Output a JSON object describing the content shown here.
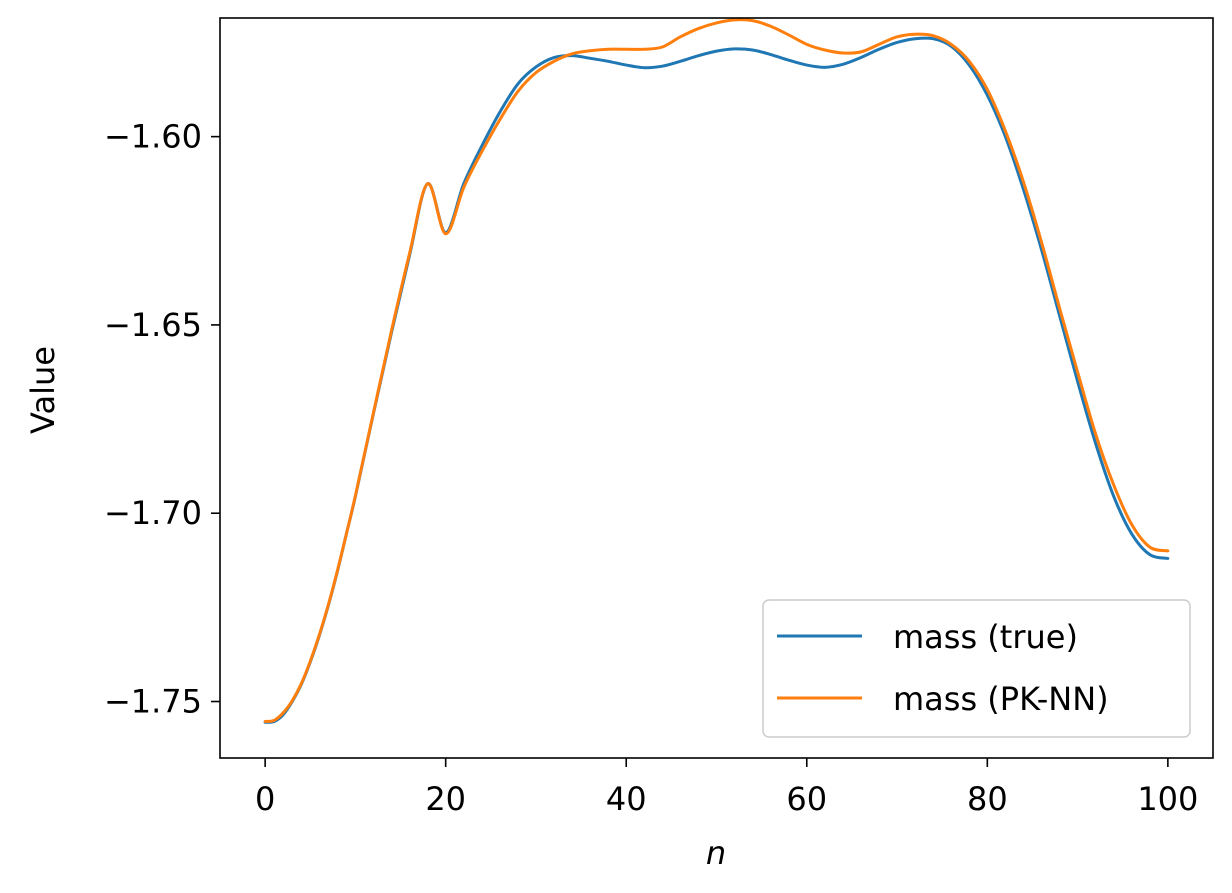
{
  "chart_data": {
    "type": "line",
    "title": "",
    "xlabel": "n",
    "ylabel": "Value",
    "xlim": [
      -5,
      105
    ],
    "ylim": [
      -1.765,
      -1.5685
    ],
    "xticks": [
      0,
      20,
      40,
      60,
      80,
      100
    ],
    "xtick_labels": [
      "0",
      "20",
      "40",
      "60",
      "80",
      "100"
    ],
    "yticks": [
      -1.75,
      -1.7,
      -1.65,
      -1.6
    ],
    "ytick_labels": [
      "−1.75",
      "−1.70",
      "−1.65",
      "−1.60"
    ],
    "grid": false,
    "legend_position": "lower-right",
    "series": [
      {
        "name": "mass (true)",
        "color": "#1f77b4",
        "x": [
          0,
          1,
          2,
          3,
          4,
          5,
          6,
          7,
          8,
          9,
          10,
          12,
          14,
          16,
          18,
          20,
          22,
          24,
          26,
          28,
          30,
          32,
          34,
          36,
          38,
          40,
          42,
          44,
          46,
          48,
          50,
          52,
          54,
          56,
          58,
          60,
          62,
          64,
          66,
          68,
          70,
          72,
          74,
          76,
          78,
          80,
          82,
          84,
          86,
          88,
          90,
          92,
          94,
          96,
          98,
          100
        ],
        "y": [
          -1.7555,
          -1.7553,
          -1.7535,
          -1.75,
          -1.7455,
          -1.7395,
          -1.7325,
          -1.7245,
          -1.7155,
          -1.7055,
          -1.6955,
          -1.6735,
          -1.652,
          -1.6315,
          -1.6125,
          -1.6255,
          -1.6125,
          -1.6025,
          -1.5935,
          -1.586,
          -1.5815,
          -1.579,
          -1.5785,
          -1.5792,
          -1.58,
          -1.581,
          -1.5817,
          -1.5813,
          -1.58,
          -1.5785,
          -1.5773,
          -1.5767,
          -1.577,
          -1.5782,
          -1.5797,
          -1.581,
          -1.5816,
          -1.5808,
          -1.579,
          -1.5768,
          -1.575,
          -1.574,
          -1.574,
          -1.576,
          -1.581,
          -1.589,
          -1.6,
          -1.614,
          -1.63,
          -1.6475,
          -1.665,
          -1.6815,
          -1.6955,
          -1.7055,
          -1.711,
          -1.712
        ]
      },
      {
        "name": "mass (PK-NN)",
        "color": "#ff7f0e",
        "x": [
          0,
          1,
          2,
          3,
          4,
          5,
          6,
          7,
          8,
          9,
          10,
          12,
          14,
          16,
          18,
          20,
          22,
          24,
          26,
          28,
          30,
          32,
          34,
          36,
          38,
          40,
          42,
          44,
          46,
          48,
          50,
          52,
          54,
          56,
          58,
          60,
          62,
          64,
          66,
          68,
          70,
          72,
          74,
          76,
          78,
          80,
          82,
          84,
          86,
          88,
          90,
          92,
          94,
          96,
          98,
          100
        ],
        "y": [
          -1.7553,
          -1.755,
          -1.753,
          -1.7498,
          -1.7453,
          -1.7393,
          -1.7323,
          -1.7243,
          -1.7153,
          -1.7055,
          -1.6953,
          -1.6733,
          -1.6515,
          -1.631,
          -1.6125,
          -1.6258,
          -1.6135,
          -1.604,
          -1.5955,
          -1.588,
          -1.583,
          -1.58,
          -1.578,
          -1.5772,
          -1.5768,
          -1.5768,
          -1.5768,
          -1.5762,
          -1.5735,
          -1.5713,
          -1.5698,
          -1.569,
          -1.5692,
          -1.5707,
          -1.573,
          -1.5755,
          -1.577,
          -1.5778,
          -1.5775,
          -1.5755,
          -1.5735,
          -1.5728,
          -1.5732,
          -1.5755,
          -1.58,
          -1.5875,
          -1.5985,
          -1.612,
          -1.628,
          -1.6455,
          -1.6625,
          -1.679,
          -1.6925,
          -1.703,
          -1.709,
          -1.71
        ]
      }
    ]
  }
}
